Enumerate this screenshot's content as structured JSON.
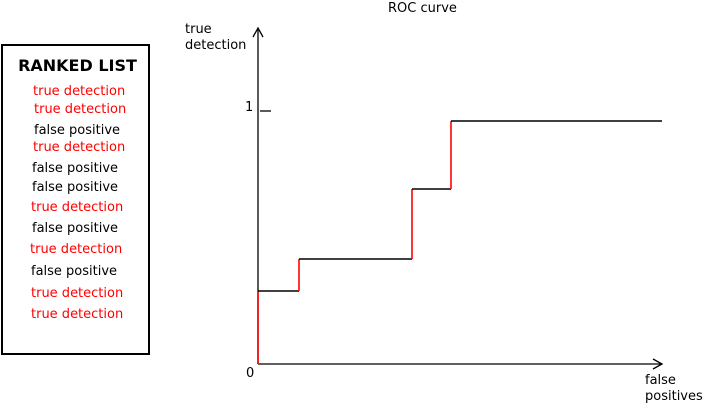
{
  "ranked_list": {
    "title": "RANKED LIST",
    "items": [
      {
        "label": "true detection",
        "kind": "true"
      },
      {
        "label": "true detection",
        "kind": "true"
      },
      {
        "label": "false positive",
        "kind": "false"
      },
      {
        "label": "true detection",
        "kind": "true"
      },
      {
        "label": "false positive",
        "kind": "false"
      },
      {
        "label": "false positive",
        "kind": "false"
      },
      {
        "label": "true detection",
        "kind": "true"
      },
      {
        "label": "false positive",
        "kind": "false"
      },
      {
        "label": "true detection",
        "kind": "true"
      },
      {
        "label": "false positive",
        "kind": "false"
      },
      {
        "label": "true detection",
        "kind": "true"
      },
      {
        "label": "true detection",
        "kind": "true"
      }
    ]
  },
  "roc": {
    "title": "ROC curve",
    "y_axis_label_line1": "true",
    "y_axis_label_line2": "detection",
    "x_axis_label_line1": "false",
    "x_axis_label_line2": "positives",
    "origin_label": "0",
    "y_tick_label": "1"
  },
  "colors": {
    "true_detection": "#ff0000",
    "false_positive": "#000000",
    "axis": "#000000"
  }
}
